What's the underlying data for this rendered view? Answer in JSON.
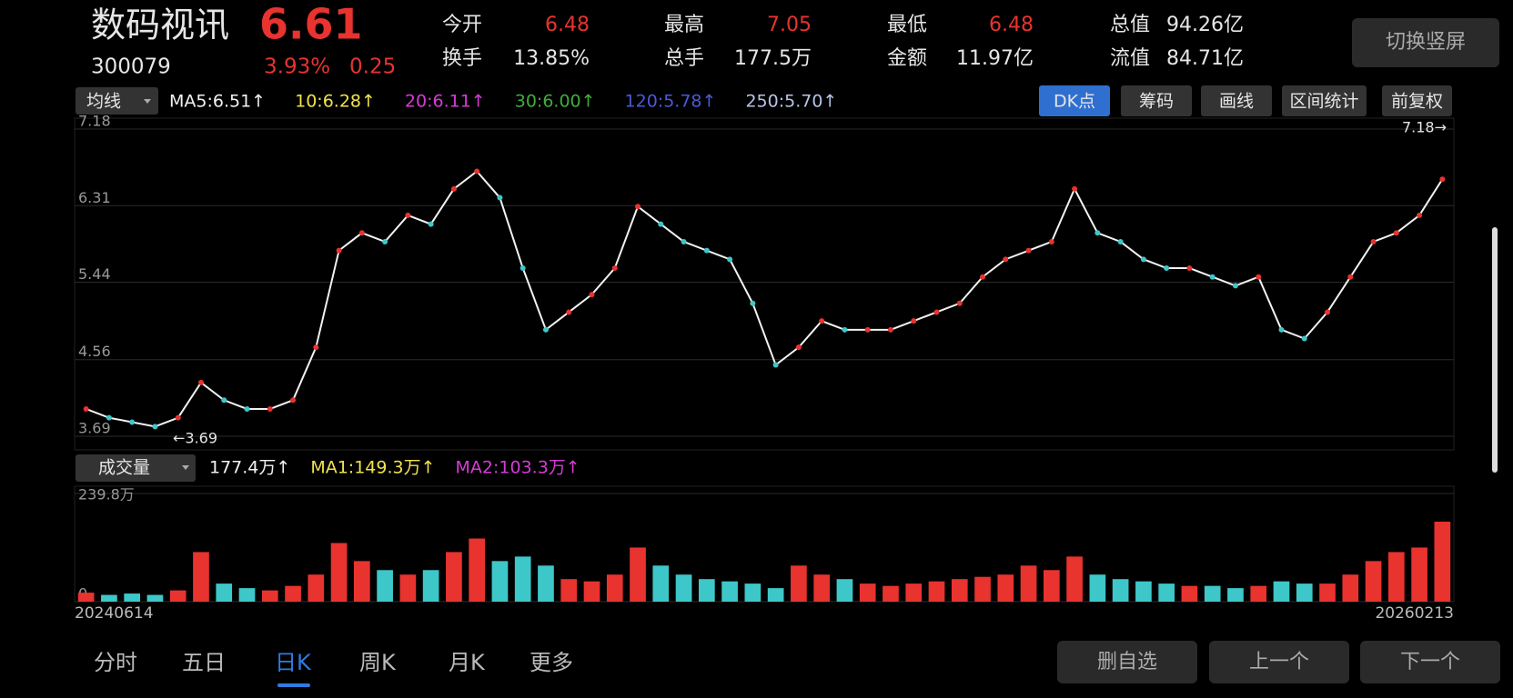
{
  "header": {
    "name": "数码视讯",
    "price": "6.61",
    "code": "300079",
    "change_pct": "3.93%",
    "change": "0.25",
    "stats": [
      {
        "label": "今开",
        "value": "6.48",
        "color": "#e8332f"
      },
      {
        "label": "换手",
        "value": "13.85%",
        "color": "#e6e6e6"
      },
      {
        "label": "最高",
        "value": "7.05",
        "color": "#e8332f"
      },
      {
        "label": "总手",
        "value": "177.5万",
        "color": "#e6e6e6"
      },
      {
        "label": "最低",
        "value": "6.48",
        "color": "#e8332f"
      },
      {
        "label": "金额",
        "value": "11.97亿",
        "color": "#e6e6e6"
      },
      {
        "label": "总值",
        "value": "94.26亿",
        "color": "#e6e6e6"
      },
      {
        "label": "流值",
        "value": "84.71亿",
        "color": "#e6e6e6"
      }
    ],
    "orientation_button": "切换竖屏"
  },
  "ma_bar": {
    "dropdown": "均线",
    "items": [
      {
        "text": "MA5:6.51↑",
        "color": "#f2f2f2"
      },
      {
        "text": "10:6.28↑",
        "color": "#f2e24a"
      },
      {
        "text": "20:6.11↑",
        "color": "#d63bd6"
      },
      {
        "text": "30:6.00↑",
        "color": "#3fae3a"
      },
      {
        "text": "120:5.78↑",
        "color": "#4a5ad8"
      },
      {
        "text": "250:5.70↑",
        "color": "#b8c4e8"
      }
    ],
    "buttons": [
      "DK点",
      "筹码",
      "画线",
      "区间统计",
      "前复权"
    ]
  },
  "volume_bar": {
    "dropdown": "成交量",
    "items": [
      {
        "text": "177.4万↑",
        "color": "#f2f2f2"
      },
      {
        "text": "MA1:149.3万↑",
        "color": "#f2e24a"
      },
      {
        "text": "MA2:103.3万↑",
        "color": "#d63bd6"
      }
    ]
  },
  "chart_data": [
    {
      "type": "line",
      "high_label": "7.18→",
      "low_label": "←3.69",
      "categories": [
        "20240614",
        null,
        null,
        null,
        null,
        null,
        null,
        null,
        null,
        null,
        null,
        null,
        null,
        null,
        null,
        null,
        null,
        null,
        null,
        null,
        null,
        null,
        null,
        null,
        null,
        null,
        null,
        null,
        null,
        null,
        null,
        null,
        null,
        null,
        null,
        null,
        null,
        null,
        null,
        null,
        null,
        null,
        null,
        null,
        null,
        null,
        null,
        null,
        null,
        null,
        null,
        null,
        null,
        null,
        null,
        null,
        null,
        null,
        null,
        "20260213"
      ],
      "series": [
        {
          "name": "收盘",
          "color": "#f2f2f2",
          "values": [
            4.0,
            3.9,
            3.85,
            3.8,
            3.9,
            4.3,
            4.1,
            4.0,
            4.0,
            4.1,
            4.7,
            5.8,
            6.0,
            5.9,
            6.2,
            6.1,
            6.5,
            6.7,
            6.4,
            5.6,
            4.9,
            5.1,
            5.3,
            5.6,
            6.3,
            6.1,
            5.9,
            5.8,
            5.7,
            5.2,
            4.5,
            4.7,
            5.0,
            4.9,
            4.9,
            4.9,
            5.0,
            5.1,
            5.2,
            5.5,
            5.7,
            5.8,
            5.9,
            6.5,
            6.0,
            5.9,
            5.7,
            5.6,
            5.6,
            5.5,
            5.4,
            5.5,
            4.9,
            4.8,
            5.1,
            5.5,
            5.9,
            6.0,
            6.2,
            6.61
          ]
        }
      ],
      "ylim": [
        3.69,
        7.18
      ],
      "yticks": [
        7.18,
        6.31,
        5.44,
        4.56,
        3.69
      ],
      "grid": true
    },
    {
      "type": "bar",
      "up_color": "#e8332f",
      "down_color": "#3ec7c9",
      "values": [
        20,
        15,
        18,
        15,
        25,
        110,
        40,
        30,
        25,
        35,
        60,
        130,
        90,
        70,
        60,
        70,
        110,
        140,
        90,
        100,
        80,
        50,
        45,
        60,
        120,
        80,
        60,
        50,
        45,
        40,
        30,
        80,
        60,
        50,
        40,
        35,
        40,
        45,
        50,
        55,
        60,
        80,
        70,
        100,
        60,
        50,
        45,
        40,
        35,
        35,
        30,
        35,
        45,
        40,
        40,
        60,
        90,
        110,
        120,
        177.4
      ],
      "ylim": [
        0,
        239.8
      ],
      "yticks": [
        {
          "value": 239.8,
          "label": "239.8万"
        },
        0
      ]
    }
  ],
  "tabs": [
    "分时",
    "五日",
    "日K",
    "周K",
    "月K",
    "更多"
  ],
  "active_tab": 2,
  "actions": [
    "删自选",
    "上一个",
    "下一个"
  ]
}
